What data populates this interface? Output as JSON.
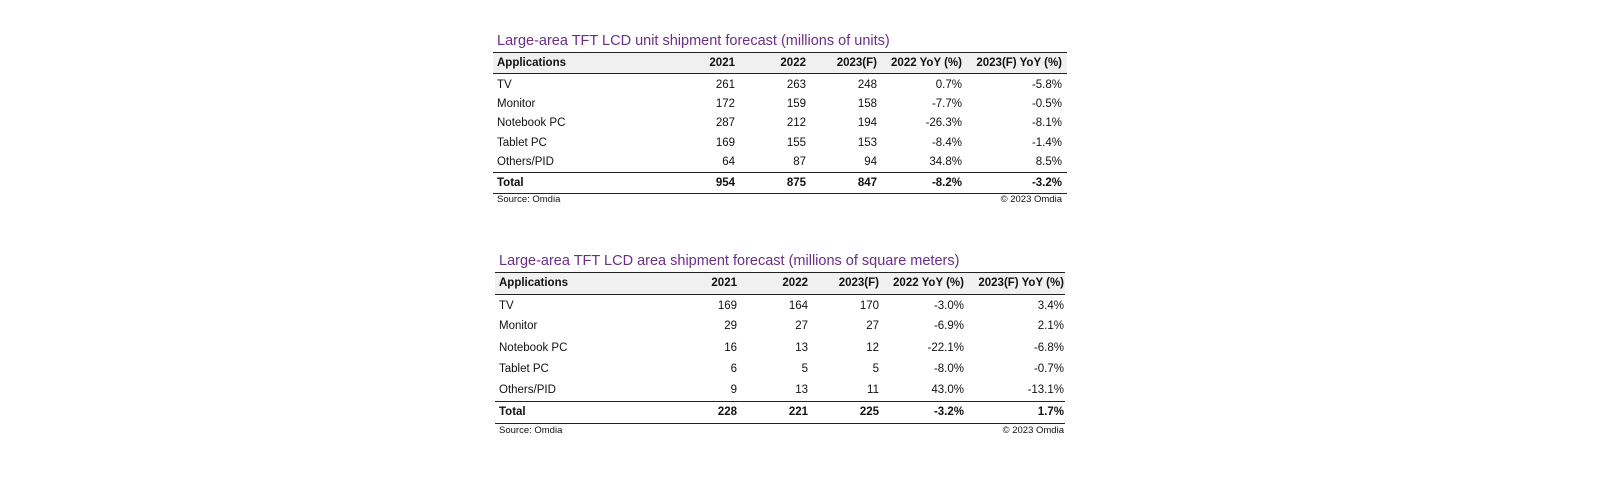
{
  "tables": [
    {
      "title": "Large-area TFT LCD unit shipment forecast (millions of units)",
      "columns": [
        "Applications",
        "2021",
        "2022",
        "2023(F)",
        "2022 YoY (%)",
        "2023(F) YoY (%)"
      ],
      "rows": [
        [
          "TV",
          "261",
          "263",
          "248",
          "0.7%",
          "-5.8%"
        ],
        [
          "Monitor",
          "172",
          "159",
          "158",
          "-7.7%",
          "-0.5%"
        ],
        [
          "Notebook PC",
          "287",
          "212",
          "194",
          "-26.3%",
          "-8.1%"
        ],
        [
          "Tablet PC",
          "169",
          "155",
          "153",
          "-8.4%",
          "-1.4%"
        ],
        [
          "Others/PID",
          "64",
          "87",
          "94",
          "34.8%",
          "8.5%"
        ]
      ],
      "total": [
        "Total",
        "954",
        "875",
        "847",
        "-8.2%",
        "-3.2%"
      ],
      "source": "Source: Omdia",
      "copyright": "© 2023 Omdia"
    },
    {
      "title": "Large-area TFT LCD area shipment forecast (millions of square meters)",
      "columns": [
        "Applications",
        "2021",
        "2022",
        "2023(F)",
        "2022 YoY (%)",
        "2023(F) YoY (%)"
      ],
      "rows": [
        [
          "TV",
          "169",
          "164",
          "170",
          "-3.0%",
          "3.4%"
        ],
        [
          "Monitor",
          "29",
          "27",
          "27",
          "-6.9%",
          "2.1%"
        ],
        [
          "Notebook PC",
          "16",
          "13",
          "12",
          "-22.1%",
          "-6.8%"
        ],
        [
          "Tablet PC",
          "6",
          "5",
          "5",
          "-8.0%",
          "-0.7%"
        ],
        [
          "Others/PID",
          "9",
          "13",
          "11",
          "43.0%",
          "-13.1%"
        ]
      ],
      "total": [
        "Total",
        "228",
        "221",
        "225",
        "-3.2%",
        "1.7%"
      ],
      "source": "Source: Omdia",
      "copyright": "© 2023 Omdia"
    }
  ]
}
